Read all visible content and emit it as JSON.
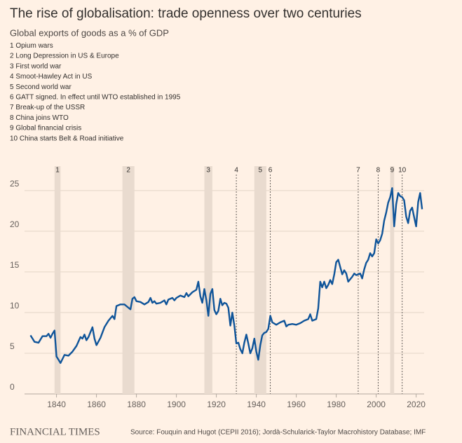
{
  "chart_data": {
    "type": "line",
    "title": "The rise of globalisation: trade openness over two centuries",
    "subtitle": "Global exports of goods as a % of GDP",
    "source": "Source: Fouquin and Hugot (CEPII 2016); Jordà-Schularick-Taylor Macrohistory Database; IMF",
    "brand": "FINANCIAL TIMES",
    "events": [
      {
        "label": "1",
        "description": "Opium wars",
        "start": 1839,
        "end": 1842
      },
      {
        "label": "2",
        "description": "Long Depression in US & Europe",
        "start": 1873,
        "end": 1879
      },
      {
        "label": "3",
        "description": "First world war",
        "start": 1914,
        "end": 1918
      },
      {
        "label": "4",
        "description": "Smoot-Hawley Act in US",
        "year": 1930
      },
      {
        "label": "5",
        "description": "Second world war",
        "start": 1939,
        "end": 1945
      },
      {
        "label": "6",
        "description": "GATT signed. In effect until WTO established in 1995",
        "year": 1947
      },
      {
        "label": "7",
        "description": "Break-up of the USSR",
        "year": 1991
      },
      {
        "label": "8",
        "description": "China joins WTO",
        "year": 2001
      },
      {
        "label": "9",
        "description": "Global financial crisis",
        "start": 2007,
        "end": 2009
      },
      {
        "label": "10",
        "description": "China starts Belt & Road initiative",
        "year": 2013
      }
    ],
    "band_color": "#e9dbcf",
    "xlim": [
      1824,
      2024
    ],
    "xticks": [
      1840,
      1860,
      1880,
      1900,
      1920,
      1940,
      1960,
      1980,
      2000,
      2020
    ],
    "ylim": [
      0,
      28
    ],
    "yticks": [
      0,
      5,
      10,
      15,
      20,
      25
    ],
    "grid": true,
    "series": [
      {
        "color": "#0f5499",
        "x": [
          1827,
          1829,
          1831,
          1833,
          1835,
          1836,
          1837,
          1838,
          1839,
          1840,
          1841,
          1842,
          1844,
          1846,
          1848,
          1850,
          1852,
          1853,
          1854,
          1855,
          1856,
          1858,
          1859,
          1860,
          1862,
          1864,
          1866,
          1868,
          1869,
          1870,
          1872,
          1874,
          1876,
          1877,
          1878,
          1879,
          1880,
          1882,
          1884,
          1886,
          1887,
          1888,
          1889,
          1890,
          1892,
          1894,
          1895,
          1896,
          1898,
          1899,
          1900,
          1902,
          1904,
          1905,
          1906,
          1908,
          1910,
          1911,
          1912,
          1913,
          1914,
          1915,
          1916,
          1917,
          1918,
          1919,
          1920,
          1921,
          1922,
          1923,
          1924,
          1925,
          1926,
          1927,
          1928,
          1929,
          1930,
          1931,
          1932,
          1933,
          1934,
          1935,
          1936,
          1937,
          1938,
          1939,
          1940,
          1941,
          1942,
          1943,
          1944,
          1945,
          1946,
          1947,
          1948,
          1950,
          1952,
          1954,
          1955,
          1956,
          1958,
          1960,
          1962,
          1964,
          1966,
          1967,
          1968,
          1970,
          1971,
          1972,
          1973,
          1974,
          1975,
          1976,
          1977,
          1978,
          1979,
          1980,
          1981,
          1982,
          1983,
          1984,
          1985,
          1986,
          1988,
          1989,
          1990,
          1992,
          1993,
          1994,
          1995,
          1996,
          1997,
          1998,
          1999,
          2000,
          2001,
          2002,
          2003,
          2004,
          2005,
          2006,
          2007,
          2008,
          2009,
          2010,
          2011,
          2012,
          2013,
          2014,
          2015,
          2016,
          2017,
          2018,
          2019,
          2020,
          2021,
          2022,
          2023
        ],
        "values": [
          7.2,
          6.4,
          6.3,
          7.1,
          7.1,
          7.4,
          6.9,
          7.4,
          7.8,
          4.6,
          4.2,
          3.8,
          4.8,
          4.7,
          5.2,
          5.9,
          7.0,
          6.8,
          7.3,
          6.6,
          7.0,
          8.2,
          6.8,
          6.0,
          6.9,
          8.2,
          9.0,
          9.6,
          9.2,
          10.8,
          11.0,
          11.0,
          10.6,
          10.4,
          11.7,
          11.9,
          11.4,
          11.3,
          11.0,
          11.3,
          11.8,
          11.2,
          11.4,
          11.1,
          11.2,
          11.5,
          11.0,
          11.6,
          11.8,
          11.5,
          11.8,
          12.1,
          11.9,
          12.4,
          12.0,
          12.5,
          12.8,
          13.8,
          12.0,
          11.2,
          12.9,
          11.5,
          9.6,
          12.3,
          12.9,
          10.3,
          9.8,
          10.2,
          11.7,
          10.9,
          11.2,
          11.1,
          10.6,
          8.4,
          10.0,
          8.4,
          6.2,
          6.3,
          5.5,
          5.0,
          6.3,
          7.3,
          6.2,
          5.0,
          5.6,
          6.8,
          5.2,
          4.2,
          6.0,
          7.2,
          7.5,
          7.6,
          8.0,
          9.6,
          8.8,
          8.5,
          8.8,
          9.0,
          8.3,
          8.5,
          8.6,
          8.5,
          8.7,
          9.0,
          9.2,
          9.8,
          9.0,
          9.2,
          10.5,
          13.8,
          13.1,
          13.8,
          13.0,
          13.4,
          14.0,
          13.5,
          14.7,
          16.2,
          16.5,
          15.6,
          14.7,
          15.2,
          14.8,
          13.8,
          14.4,
          14.8,
          14.6,
          14.8,
          14.2,
          15.3,
          16.1,
          16.5,
          17.3,
          16.9,
          17.3,
          19.0,
          18.5,
          18.9,
          19.7,
          21.3,
          22.3,
          23.5,
          24.2,
          25.3,
          20.6,
          23.3,
          24.7,
          24.3,
          24.2,
          23.8,
          21.8,
          21.0,
          22.5,
          22.9,
          21.7,
          20.6,
          23.6,
          24.7,
          22.7
        ]
      }
    ]
  }
}
